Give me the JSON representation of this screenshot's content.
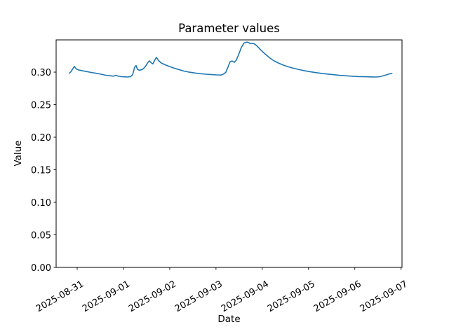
{
  "figure": {
    "title": "Parameter values",
    "xlabel": "Date",
    "ylabel": "Value"
  },
  "chart_data": {
    "type": "line",
    "title": "Parameter values",
    "xlabel": "Date",
    "ylabel": "Value",
    "grid": false,
    "legend_position": "none",
    "background": "#ffffff",
    "line_color": "#1f77b4",
    "axis_color": "#000000",
    "x_tick_labels": [
      "2025-08-31",
      "2025-09-01",
      "2025-09-02",
      "2025-09-03",
      "2025-09-04",
      "2025-09-05",
      "2025-09-06",
      "2025-09-07"
    ],
    "x_tick_days": [
      0,
      1,
      2,
      3,
      4,
      5,
      6,
      7
    ],
    "x_tick_rotation_deg": 30,
    "y_ticks": [
      0.0,
      0.05,
      0.1,
      0.15,
      0.2,
      0.25,
      0.3
    ],
    "y_tick_labels": [
      "0.00",
      "0.05",
      "0.10",
      "0.15",
      "0.20",
      "0.25",
      "0.30"
    ],
    "xlim_days": [
      -0.455,
      7.02
    ],
    "ylim": [
      0,
      0.3495
    ],
    "series": [
      {
        "name": "parameter-value",
        "points": [
          [
            -0.167,
            0.2985
          ],
          [
            -0.136,
            0.3005
          ],
          [
            -0.091,
            0.3055
          ],
          [
            -0.061,
            0.3088
          ],
          [
            -0.015,
            0.3045
          ],
          [
            0.045,
            0.303
          ],
          [
            0.121,
            0.302
          ],
          [
            0.212,
            0.3008
          ],
          [
            0.303,
            0.2995
          ],
          [
            0.409,
            0.2982
          ],
          [
            0.515,
            0.2968
          ],
          [
            0.621,
            0.2952
          ],
          [
            0.712,
            0.2944
          ],
          [
            0.788,
            0.2938
          ],
          [
            0.833,
            0.2952
          ],
          [
            0.879,
            0.294
          ],
          [
            0.939,
            0.2932
          ],
          [
            1.015,
            0.2928
          ],
          [
            1.091,
            0.2925
          ],
          [
            1.152,
            0.2932
          ],
          [
            1.197,
            0.2958
          ],
          [
            1.242,
            0.3075
          ],
          [
            1.273,
            0.31
          ],
          [
            1.303,
            0.3042
          ],
          [
            1.348,
            0.3028
          ],
          [
            1.409,
            0.304
          ],
          [
            1.47,
            0.3082
          ],
          [
            1.53,
            0.315
          ],
          [
            1.561,
            0.3172
          ],
          [
            1.606,
            0.314
          ],
          [
            1.636,
            0.3126
          ],
          [
            1.682,
            0.319
          ],
          [
            1.712,
            0.3226
          ],
          [
            1.758,
            0.3178
          ],
          [
            1.818,
            0.314
          ],
          [
            1.894,
            0.3114
          ],
          [
            1.985,
            0.3088
          ],
          [
            2.091,
            0.3062
          ],
          [
            2.197,
            0.304
          ],
          [
            2.303,
            0.3016
          ],
          [
            2.424,
            0.2999
          ],
          [
            2.545,
            0.2986
          ],
          [
            2.667,
            0.2976
          ],
          [
            2.788,
            0.2968
          ],
          [
            2.909,
            0.2962
          ],
          [
            3.015,
            0.2957
          ],
          [
            3.106,
            0.2955
          ],
          [
            3.167,
            0.2972
          ],
          [
            3.212,
            0.2998
          ],
          [
            3.258,
            0.3075
          ],
          [
            3.303,
            0.316
          ],
          [
            3.348,
            0.3172
          ],
          [
            3.394,
            0.315
          ],
          [
            3.439,
            0.3185
          ],
          [
            3.485,
            0.3262
          ],
          [
            3.545,
            0.3375
          ],
          [
            3.606,
            0.3448
          ],
          [
            3.667,
            0.3462
          ],
          [
            3.712,
            0.3452
          ],
          [
            3.742,
            0.3436
          ],
          [
            3.773,
            0.3442
          ],
          [
            3.818,
            0.3438
          ],
          [
            3.864,
            0.3415
          ],
          [
            3.909,
            0.3385
          ],
          [
            3.97,
            0.334
          ],
          [
            4.03,
            0.3298
          ],
          [
            4.106,
            0.3252
          ],
          [
            4.167,
            0.3215
          ],
          [
            4.258,
            0.3172
          ],
          [
            4.348,
            0.314
          ],
          [
            4.455,
            0.3108
          ],
          [
            4.561,
            0.3082
          ],
          [
            4.682,
            0.3058
          ],
          [
            4.803,
            0.3038
          ],
          [
            4.924,
            0.302
          ],
          [
            5.045,
            0.3005
          ],
          [
            5.167,
            0.2992
          ],
          [
            5.288,
            0.298
          ],
          [
            5.409,
            0.297
          ],
          [
            5.545,
            0.296
          ],
          [
            5.682,
            0.295
          ],
          [
            5.818,
            0.2943
          ],
          [
            5.955,
            0.2937
          ],
          [
            6.091,
            0.2932
          ],
          [
            6.227,
            0.2929
          ],
          [
            6.364,
            0.2926
          ],
          [
            6.47,
            0.2925
          ],
          [
            6.545,
            0.293
          ],
          [
            6.621,
            0.2945
          ],
          [
            6.697,
            0.2962
          ],
          [
            6.758,
            0.2974
          ],
          [
            6.803,
            0.2979
          ]
        ]
      }
    ]
  }
}
